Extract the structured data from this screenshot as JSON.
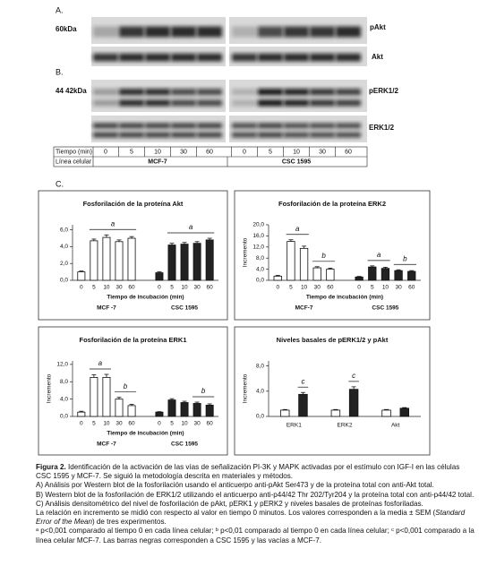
{
  "blots": [
    {
      "panel": "A.",
      "marker": "60kDa",
      "labels": [
        "pAkt",
        "Akt"
      ]
    },
    {
      "panel": "B.",
      "marker": "44 42kDa",
      "labels": [
        "pERK1/2",
        "ERK1/2"
      ]
    }
  ],
  "table": {
    "time_label": "Tiempo (min)",
    "times": [
      "0",
      "5",
      "10",
      "30",
      "60",
      "0",
      "5",
      "10",
      "30",
      "60"
    ],
    "line_label": "Línea celular",
    "lines": [
      "MCF-7",
      "CSC 1595"
    ]
  },
  "panel_c": "C.",
  "chart_data": [
    {
      "type": "bar",
      "title": "Fosforilación de la proteína Akt",
      "x_label": "Tiempo de incubación (min)",
      "ylim": [
        0,
        6.6
      ],
      "yticks": [
        {
          "value": 0,
          "label": "0,0"
        },
        {
          "value": 2,
          "label": "2,0"
        },
        {
          "value": 4,
          "label": "4,0"
        },
        {
          "value": 6,
          "label": "6,0"
        }
      ],
      "groups": [
        {
          "name": "MCF -7",
          "color": "#ffffff",
          "categories": [
            "0",
            "5",
            "10",
            "30",
            "60"
          ],
          "values": [
            1.0,
            4.7,
            5.1,
            4.6,
            5.0
          ],
          "errors": [
            0.1,
            0.2,
            0.3,
            0.2,
            0.2
          ],
          "significance": [
            null,
            "a",
            "a",
            "a",
            "a"
          ]
        },
        {
          "name": "CSC 1595",
          "color": "#222222",
          "categories": [
            "0",
            "5",
            "10",
            "30",
            "60"
          ],
          "values": [
            0.9,
            4.2,
            4.3,
            4.4,
            4.8
          ],
          "errors": [
            0.1,
            0.2,
            0.2,
            0.2,
            0.2
          ],
          "significance": [
            null,
            "a",
            "a",
            "a",
            "a"
          ]
        }
      ]
    },
    {
      "type": "bar",
      "title": "Fosforilación de la proteína ERK2",
      "x_label": "Tiempo de incubación (min)",
      "y_label": "Incremento",
      "ylim": [
        0,
        20
      ],
      "yticks": [
        {
          "value": 0,
          "label": "0,0"
        },
        {
          "value": 4,
          "label": "4,0"
        },
        {
          "value": 8,
          "label": "8,0"
        },
        {
          "value": 12,
          "label": "12,0"
        },
        {
          "value": 16,
          "label": "16,0"
        },
        {
          "value": 20,
          "label": "20,0"
        }
      ],
      "groups": [
        {
          "name": "MCF-7",
          "color": "#ffffff",
          "categories": [
            "0",
            "5",
            "10",
            "30",
            "60"
          ],
          "values": [
            1.5,
            14.0,
            11.5,
            4.5,
            4.0
          ],
          "errors": [
            0.3,
            0.6,
            0.8,
            0.4,
            0.4
          ],
          "significance": [
            null,
            "a",
            "a",
            "b",
            "b"
          ]
        },
        {
          "name": "CSC 1595",
          "color": "#222222",
          "categories": [
            "0",
            "5",
            "10",
            "30",
            "60"
          ],
          "values": [
            1.2,
            4.8,
            4.3,
            3.5,
            3.2
          ],
          "errors": [
            0.2,
            0.4,
            0.4,
            0.3,
            0.3
          ],
          "significance": [
            null,
            "a",
            "a",
            "b",
            "b"
          ]
        }
      ]
    },
    {
      "type": "bar",
      "title": "Fosforilación de la proteína ERK1",
      "x_label": "Tiempo de incubación (min)",
      "y_label": "Incremento",
      "ylim": [
        0,
        12.8
      ],
      "yticks": [
        {
          "value": 0,
          "label": "0,0"
        },
        {
          "value": 4,
          "label": "4,0"
        },
        {
          "value": 8,
          "label": "8,0"
        },
        {
          "value": 12,
          "label": "12,0"
        }
      ],
      "groups": [
        {
          "name": "MCF -7",
          "color": "#ffffff",
          "categories": [
            "0",
            "5",
            "10",
            "30",
            "60"
          ],
          "values": [
            1.0,
            9.0,
            9.0,
            4.0,
            2.5
          ],
          "errors": [
            0.2,
            0.6,
            0.7,
            0.4,
            0.3
          ],
          "significance": [
            null,
            "a",
            "a",
            "b",
            "b"
          ]
        },
        {
          "name": "CSC 1595",
          "color": "#222222",
          "categories": [
            "0",
            "5",
            "10",
            "30",
            "60"
          ],
          "values": [
            1.0,
            3.8,
            3.2,
            3.0,
            2.6
          ],
          "errors": [
            0.1,
            0.3,
            0.3,
            0.3,
            0.3
          ],
          "significance": [
            null,
            null,
            null,
            "b",
            "b"
          ]
        }
      ]
    },
    {
      "type": "bar",
      "title": "Niveles basales de pERK1/2 y pAkt",
      "y_label": "Incremento",
      "ylim": [
        0,
        8.8
      ],
      "yticks": [
        {
          "value": 0,
          "label": "0,0"
        },
        {
          "value": 4,
          "label": "4,0"
        },
        {
          "value": 8,
          "label": "8,0"
        }
      ],
      "categories": [
        "ERK1",
        "ERK2",
        "Akt"
      ],
      "series": [
        {
          "color": "#ffffff",
          "values": [
            1.0,
            1.0,
            1.0
          ],
          "errors": [
            0.1,
            0.1,
            0.1
          ],
          "significance": [
            null,
            null,
            null
          ]
        },
        {
          "color": "#222222",
          "values": [
            3.5,
            4.3,
            1.3
          ],
          "errors": [
            0.3,
            0.4,
            0.1
          ],
          "significance": [
            "c",
            "c",
            null
          ]
        }
      ]
    }
  ],
  "caption": {
    "label": "Figura 2.",
    "text": "Identificación de la activación de las vías de señalización PI-3K y MAPK activadas por el estímulo con IGF-I en las células CSC 1595 y MCF-7. Se siguió la metodología descrita en materiales y métodos.",
    "items": [
      "A) Análisis por Western blot de la fosforilación usando el anticuerpo anti-pAkt Ser473 y de la proteína total con anti-Akt total.",
      "B) Western blot de la fosforilación de ERK1/2 utilizando el anticuerpo anti-p44/42 Thr 202/Tyr204 y la proteína total con anti-p44/42 total.",
      "C) Análisis densitométrico del nivel de fosforilación de pAkt, pERK1 y pERK2 y niveles basales de proteínas fosforiladas."
    ],
    "note": [
      "La relación en incremento se midió con respecto al valor en tiempo 0 minutos. Los valores corresponden a la media ± SEM (",
      "Standard Error of the Mean",
      ") de tres experimentos."
    ],
    "footnote": "ᵃ p<0,001 comparado al tiempo 0 en cada línea celular; ᵇ p<0,01 comparado al tiempo 0 en cada línea celular; ᶜ p<0,001 comparado a la línea celular MCF-7. Las barras negras corresponden a CSC 1595 y las vacías a MCF-7."
  }
}
